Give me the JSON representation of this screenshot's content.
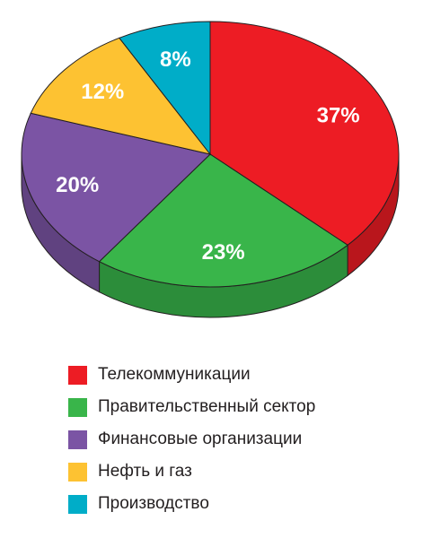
{
  "chart_data": {
    "type": "pie",
    "style": "3d",
    "start": "top, clockwise",
    "slices": [
      {
        "label": "Телекоммуникации",
        "value": 37,
        "value_label": "37%",
        "color": "#ED1C24"
      },
      {
        "label": "Правительственный сектор",
        "value": 23,
        "value_label": "23%",
        "color": "#39B54A"
      },
      {
        "label": "Финансовые организации",
        "value": 20,
        "value_label": "20%",
        "color": "#7B54A4"
      },
      {
        "label": "Нефть и газ",
        "value": 12,
        "value_label": "12%",
        "color": "#FDC232"
      },
      {
        "label": "Производство",
        "value": 8,
        "value_label": "8%",
        "color": "#00ADC8"
      }
    ],
    "legend_position": "bottom"
  }
}
